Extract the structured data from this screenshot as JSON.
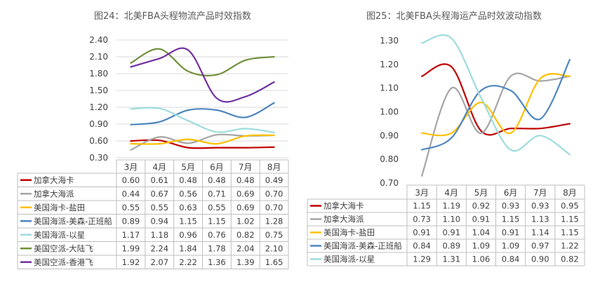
{
  "chart_data": [
    {
      "type": "line",
      "title": "图24：北美FBA头程物流产品时效指数",
      "categories": [
        "3月",
        "4月",
        "5月",
        "6月",
        "7月",
        "8月"
      ],
      "ylim": [
        0.3,
        2.4
      ],
      "yticks": [
        "0.30",
        "0.60",
        "0.90",
        "1.20",
        "1.50",
        "1.80",
        "2.10",
        "2.40"
      ],
      "grid": true,
      "legend": "data-table-below",
      "series": [
        {
          "name": "加拿大海卡",
          "color": "#c00000",
          "values": [
            0.6,
            0.61,
            0.48,
            0.48,
            0.48,
            0.49
          ],
          "labels": [
            "0.60",
            "0.61",
            "0.48",
            "0.48",
            "0.48",
            "0.49"
          ]
        },
        {
          "name": "加拿大海派",
          "color": "#a5a5a5",
          "values": [
            0.44,
            0.67,
            0.56,
            0.71,
            0.69,
            0.7
          ],
          "labels": [
            "0.44",
            "0.67",
            "0.56",
            "0.71",
            "0.69",
            "0.70"
          ]
        },
        {
          "name": "美国海卡-盐田",
          "color": "#ffc000",
          "values": [
            0.55,
            0.55,
            0.63,
            0.55,
            0.69,
            0.7
          ],
          "labels": [
            "0.55",
            "0.55",
            "0.63",
            "0.55",
            "0.69",
            "0.70"
          ]
        },
        {
          "name": "美国海派-美森-正班船",
          "color": "#4e86c0",
          "values": [
            0.89,
            0.94,
            1.15,
            1.15,
            1.02,
            1.28
          ],
          "labels": [
            "0.89",
            "0.94",
            "1.15",
            "1.15",
            "1.02",
            "1.28"
          ]
        },
        {
          "name": "美国海派-以星",
          "color": "#9fdcdc",
          "values": [
            1.17,
            1.18,
            0.96,
            0.76,
            0.82,
            0.75
          ],
          "labels": [
            "1.17",
            "1.18",
            "0.96",
            "0.76",
            "0.82",
            "0.75"
          ]
        },
        {
          "name": "美国空派-大陆飞",
          "color": "#70903a",
          "values": [
            1.99,
            2.24,
            1.84,
            1.78,
            2.04,
            2.1
          ],
          "labels": [
            "1.99",
            "2.24",
            "1.84",
            "1.78",
            "2.04",
            "2.10"
          ]
        },
        {
          "name": "美国空派-香港飞",
          "color": "#7030a0",
          "values": [
            1.92,
            2.07,
            2.22,
            1.36,
            1.39,
            1.65
          ],
          "labels": [
            "1.92",
            "2.07",
            "2.22",
            "1.36",
            "1.39",
            "1.65"
          ]
        }
      ]
    },
    {
      "type": "line",
      "title": "图25：北美FBA头程海运产品时效波动指数",
      "categories": [
        "3月",
        "4月",
        "5月",
        "6月",
        "7月",
        "8月"
      ],
      "ylim": [
        0.7,
        1.3
      ],
      "yticks": [
        "0.70",
        "0.80",
        "0.90",
        "1.00",
        "1.10",
        "1.20",
        "1.30"
      ],
      "grid": false,
      "legend": "data-table-below",
      "series": [
        {
          "name": "加拿大海卡",
          "color": "#c00000",
          "values": [
            1.15,
            1.19,
            0.92,
            0.93,
            0.93,
            0.95
          ],
          "labels": [
            "1.15",
            "1.19",
            "0.92",
            "0.93",
            "0.93",
            "0.95"
          ]
        },
        {
          "name": "加拿大海派",
          "color": "#a5a5a5",
          "values": [
            0.73,
            1.1,
            0.91,
            1.15,
            1.13,
            1.15
          ],
          "labels": [
            "0.73",
            "1.10",
            "0.91",
            "1.15",
            "1.13",
            "1.15"
          ]
        },
        {
          "name": "美国海卡-盐田",
          "color": "#ffc000",
          "values": [
            0.91,
            0.91,
            1.04,
            0.91,
            1.14,
            1.15
          ],
          "labels": [
            "0.91",
            "0.91",
            "1.04",
            "0.91",
            "1.14",
            "1.15"
          ]
        },
        {
          "name": "美国海派-美森-正班船",
          "color": "#4e86c0",
          "values": [
            0.84,
            0.89,
            1.09,
            1.09,
            0.97,
            1.22
          ],
          "labels": [
            "0.84",
            "0.89",
            "1.09",
            "1.09",
            "0.97",
            "1.22"
          ]
        },
        {
          "name": "美国海派-以星",
          "color": "#9fdcdc",
          "values": [
            1.29,
            1.31,
            1.06,
            0.84,
            0.9,
            0.82
          ],
          "labels": [
            "1.29",
            "1.31",
            "1.06",
            "0.84",
            "0.90",
            "0.82"
          ]
        }
      ]
    }
  ]
}
